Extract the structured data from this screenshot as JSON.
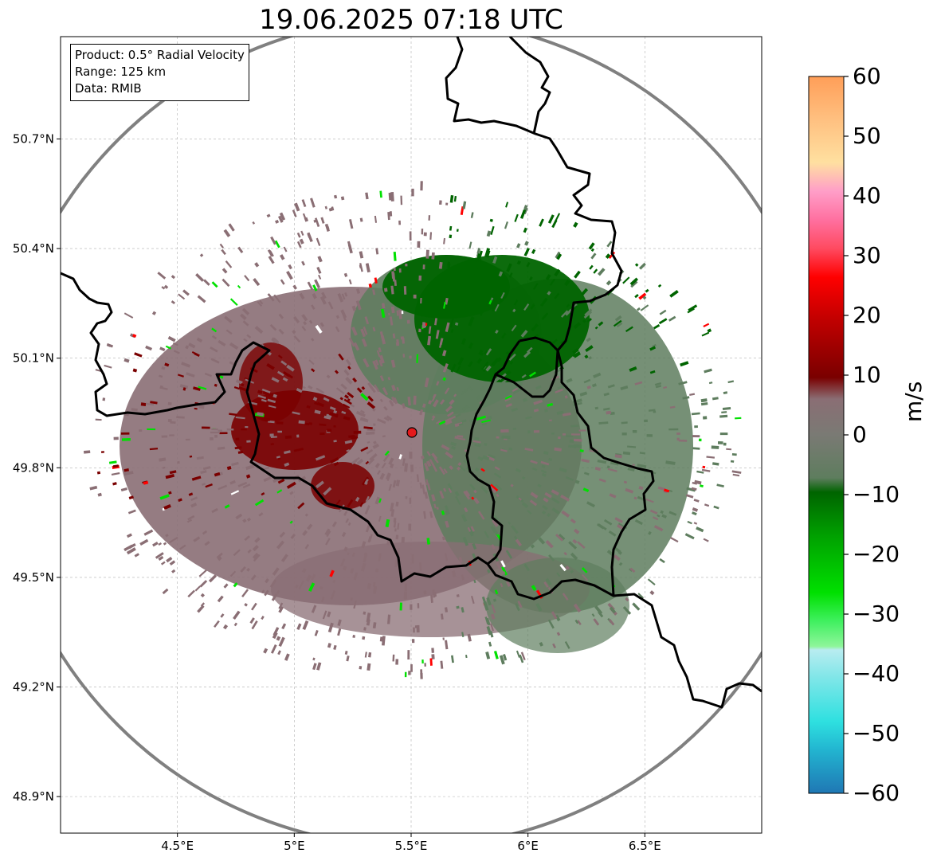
{
  "title": "19.06.2025 07:18 UTC",
  "info": {
    "product": "Product: 0.5° Radial Velocity",
    "range": "Range: 125 km",
    "source": "Data: RMIB"
  },
  "axes": {
    "lon_ticks": [
      {
        "label": "4.5°E",
        "value": 4.5
      },
      {
        "label": "5°E",
        "value": 5.0
      },
      {
        "label": "5.5°E",
        "value": 5.5
      },
      {
        "label": "6°E",
        "value": 6.0
      },
      {
        "label": "6.5°E",
        "value": 6.5
      }
    ],
    "lat_ticks": [
      {
        "label": "50.7°N",
        "value": 50.7
      },
      {
        "label": "50.4°N",
        "value": 50.4
      },
      {
        "label": "50.1°N",
        "value": 50.1
      },
      {
        "label": "49.8°N",
        "value": 49.8
      },
      {
        "label": "49.5°N",
        "value": 49.5
      },
      {
        "label": "49.2°N",
        "value": 49.2
      },
      {
        "label": "48.9°N",
        "value": 48.9
      }
    ],
    "lon_range": [
      4.0,
      7.0
    ],
    "lat_range": [
      48.8,
      50.98
    ],
    "gridlines": true
  },
  "radar_site": {
    "lon": 5.505,
    "lat": 49.914,
    "range_km": 125
  },
  "colorbar": {
    "unit": "m/s",
    "min": -60,
    "max": 60,
    "ticks": [
      {
        "label": "60",
        "value": 60
      },
      {
        "label": "50",
        "value": 50
      },
      {
        "label": "40",
        "value": 40
      },
      {
        "label": "30",
        "value": 30
      },
      {
        "label": "20",
        "value": 20
      },
      {
        "label": "10",
        "value": 10
      },
      {
        "label": "0",
        "value": 0
      },
      {
        "label": "−10",
        "value": -10
      },
      {
        "label": "−20",
        "value": -20
      },
      {
        "label": "−30",
        "value": -30
      },
      {
        "label": "−40",
        "value": -40
      },
      {
        "label": "−50",
        "value": -50
      },
      {
        "label": "−60",
        "value": -60
      }
    ],
    "colors": {
      "ocean_blue": "#1f77b4",
      "cyan": "#2ee0e0",
      "light_cyan": "#b8ecf0",
      "light_green": "#8ef59a",
      "green": "#00e000",
      "dark_green": "#006400",
      "grey_green": "#5e7d5e",
      "grey_maroon": "#8a6e74",
      "maroon": "#7a0000",
      "red": "#ff0000",
      "pink": "#ff5a70",
      "light_pink": "#ffb8c4",
      "peach": "#ffe0a0",
      "orange": "#ff9e58"
    }
  },
  "map_colors": {
    "range_ring": "#808080",
    "border": "#000000",
    "grid": "#b0b0b0"
  }
}
